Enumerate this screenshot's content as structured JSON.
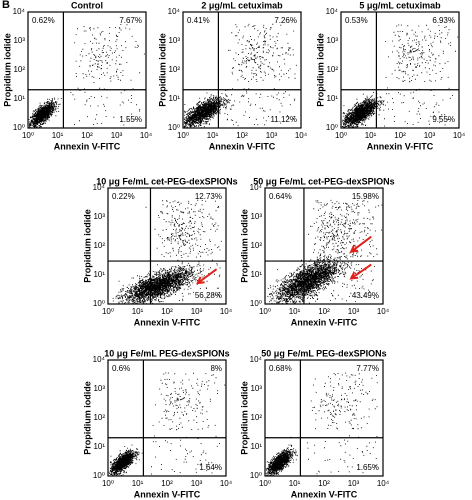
{
  "panel_label": "B",
  "axis": {
    "x_label": "Annexin V-FITC",
    "y_label": "Propidium iodide",
    "ticks": [
      "10⁰",
      "10¹",
      "10²",
      "10³",
      "10⁴"
    ]
  },
  "panels": [
    {
      "title": "Control",
      "upper_left": "0.62%",
      "upper_right": "7.67%",
      "lower_right": "1.55%"
    },
    {
      "title": "2 μg/mL cetuximab",
      "upper_left": "0.41%",
      "upper_right": "7.26%",
      "lower_right": "11.12%"
    },
    {
      "title": "5 μg/mL cetuximab",
      "upper_left": "0.53%",
      "upper_right": "6.93%",
      "lower_right": "9.55%"
    },
    {
      "title": "10 μg Fe/mL cet-PEG-dexSPIONs",
      "upper_left": "0.22%",
      "upper_right": "12.73%",
      "lower_right": "56.28%"
    },
    {
      "title": "50 μg Fe/mL cet-PEG-dexSPIONs",
      "upper_left": "0.64%",
      "upper_right": "15.98%",
      "lower_right": "43.49%"
    },
    {
      "title": "10 μg Fe/mL PEG-dexSPIONs",
      "upper_left": "0.6%",
      "upper_right": "8%",
      "lower_right": "1.64%"
    },
    {
      "title": "50 μg Fe/mL PEG-dexSPIONs",
      "upper_left": "0.68%",
      "upper_right": "7.77%",
      "lower_right": "1.65%"
    }
  ]
}
